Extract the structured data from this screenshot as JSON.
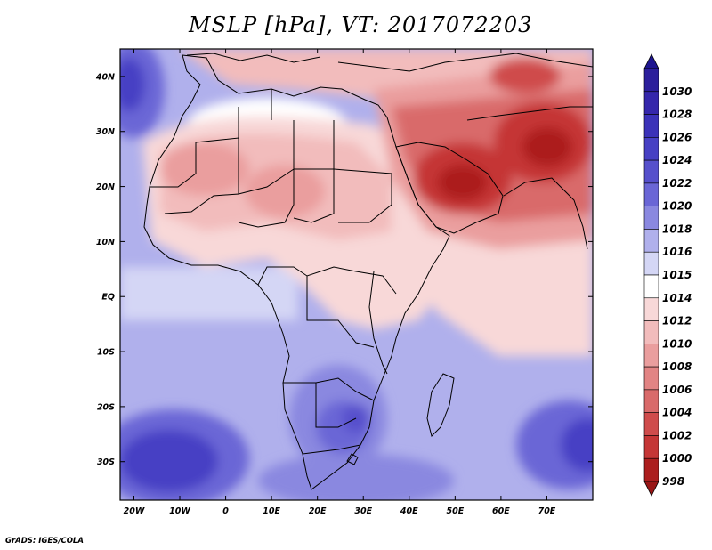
{
  "title": "MSLP [hPa], VT: 2017072203",
  "credit": "GrADS: IGES/COLA",
  "map": {
    "lon_range": [
      -23,
      80
    ],
    "lat_range": [
      -37,
      45
    ],
    "lon_ticks": [
      {
        "lon": -20,
        "label": "20W"
      },
      {
        "lon": -10,
        "label": "10W"
      },
      {
        "lon": 0,
        "label": "0"
      },
      {
        "lon": 10,
        "label": "10E"
      },
      {
        "lon": 20,
        "label": "20E"
      },
      {
        "lon": 30,
        "label": "30E"
      },
      {
        "lon": 40,
        "label": "40E"
      },
      {
        "lon": 50,
        "label": "50E"
      },
      {
        "lon": 60,
        "label": "60E"
      },
      {
        "lon": 70,
        "label": "70E"
      }
    ],
    "lat_ticks": [
      {
        "lat": 40,
        "label": "40N"
      },
      {
        "lat": 30,
        "label": "30N"
      },
      {
        "lat": 20,
        "label": "20N"
      },
      {
        "lat": 10,
        "label": "10N"
      },
      {
        "lat": 0,
        "label": "EQ"
      },
      {
        "lat": -10,
        "label": "10S"
      },
      {
        "lat": -20,
        "label": "20S"
      },
      {
        "lat": -30,
        "label": "30S"
      }
    ]
  },
  "colorbar": {
    "levels": [
      {
        "label": "1030",
        "color": "#2c1f9c"
      },
      {
        "label": "1028",
        "color": "#3527ac"
      },
      {
        "label": "1026",
        "color": "#3b32b9"
      },
      {
        "label": "1024",
        "color": "#4740c4"
      },
      {
        "label": "1022",
        "color": "#5650cc"
      },
      {
        "label": "1020",
        "color": "#6a66d6"
      },
      {
        "label": "1018",
        "color": "#8a88e0"
      },
      {
        "label": "1016",
        "color": "#b0b0ec"
      },
      {
        "label": "1015",
        "color": "#d4d6f5"
      },
      {
        "label": "1014",
        "color": "#ffffff"
      },
      {
        "label": "1012",
        "color": "#f8d8d8"
      },
      {
        "label": "1010",
        "color": "#f2bcbc"
      },
      {
        "label": "1008",
        "color": "#ea9e9e"
      },
      {
        "label": "1006",
        "color": "#e28484"
      },
      {
        "label": "1004",
        "color": "#d96a6a"
      },
      {
        "label": "1002",
        "color": "#cf4c4c"
      },
      {
        "label": "1000",
        "color": "#c53636"
      },
      {
        "label": "998",
        "color": "#ac1e1e"
      }
    ],
    "top_arrow_color": "#1e1590",
    "bottom_arrow_color": "#981616"
  }
}
